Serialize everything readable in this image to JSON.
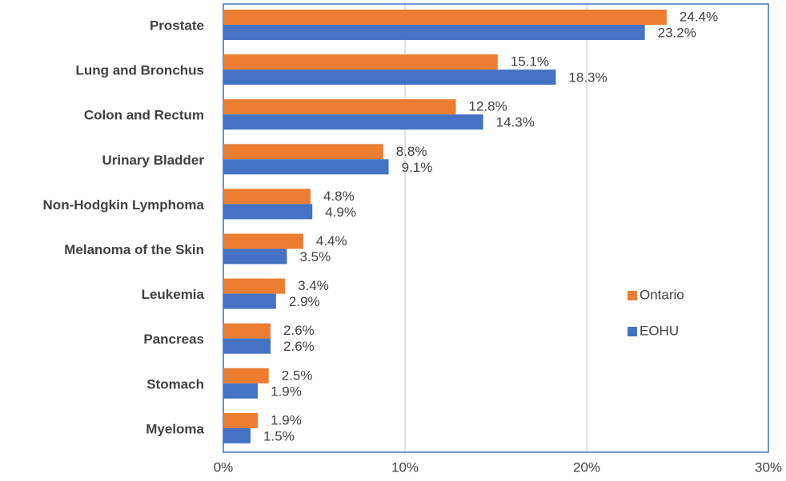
{
  "chart_data": {
    "type": "bar",
    "orientation": "horizontal",
    "categories": [
      "Prostate",
      "Lung and Bronchus",
      "Colon and Rectum",
      "Urinary Bladder",
      "Non-Hodgkin Lymphoma",
      "Melanoma of the Skin",
      "Leukemia",
      "Pancreas",
      "Stomach",
      "Myeloma"
    ],
    "series": [
      {
        "name": "Ontario",
        "color": "#ed7d31",
        "values": [
          24.4,
          15.1,
          12.8,
          8.8,
          4.8,
          4.4,
          3.4,
          2.6,
          2.5,
          1.9
        ],
        "value_labels": [
          "24.4%",
          "15.1%",
          "12.8%",
          "8.8%",
          "4.8%",
          "4.4%",
          "3.4%",
          "2.6%",
          "2.5%",
          "1.9%"
        ]
      },
      {
        "name": "EOHU",
        "color": "#4472c4",
        "values": [
          23.2,
          18.3,
          14.3,
          9.1,
          4.9,
          3.5,
          2.9,
          2.6,
          1.9,
          1.5
        ],
        "value_labels": [
          "23.2%",
          "18.3%",
          "14.3%",
          "9.1%",
          "4.9%",
          "3.5%",
          "2.9%",
          "2.6%",
          "1.9%",
          "1.5%"
        ]
      }
    ],
    "xlim": [
      0,
      30
    ],
    "xticks": [
      {
        "value": 0,
        "label": "0%"
      },
      {
        "value": 10,
        "label": "10%"
      },
      {
        "value": 20,
        "label": "20%"
      },
      {
        "value": 30,
        "label": "30%"
      }
    ],
    "grid": true,
    "legend": "right"
  }
}
